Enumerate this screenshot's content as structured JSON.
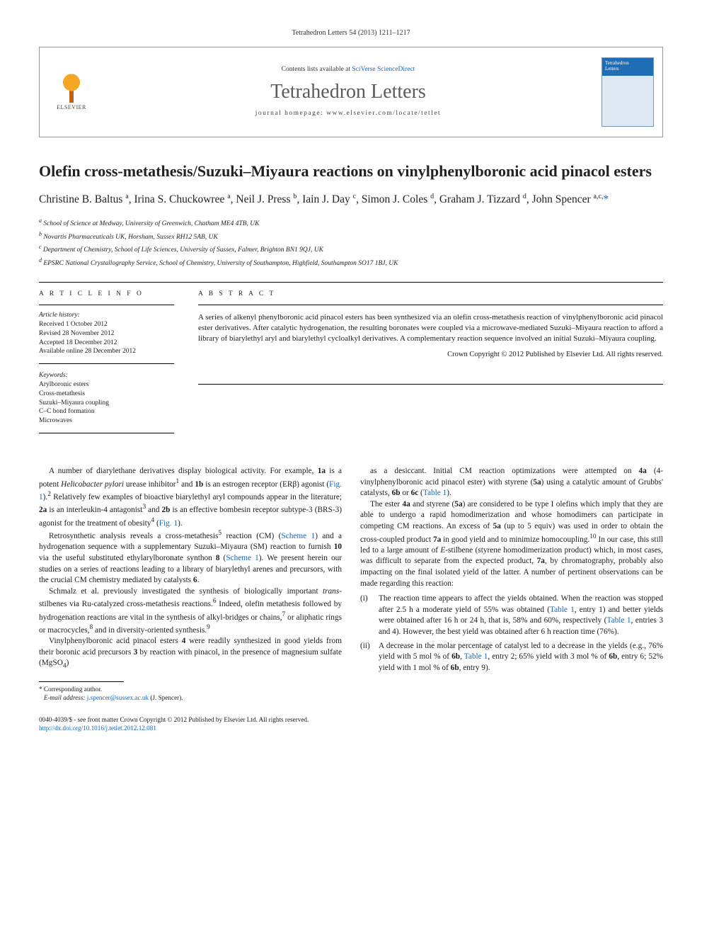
{
  "citation": "Tetrahedron Letters 54 (2013) 1211–1217",
  "header": {
    "publisher": "ELSEVIER",
    "contents_prefix": "Contents lists available at ",
    "contents_link": "SciVerse ScienceDirect",
    "journal_name": "Tetrahedron Letters",
    "homepage_prefix": "journal homepage: ",
    "homepage_url": "www.elsevier.com/locate/tetlet"
  },
  "title": "Olefin cross-metathesis/Suzuki–Miyaura reactions on vinylphenylboronic acid pinacol esters",
  "authors_html": "Christine B. Baltus <sup>a</sup>, Irina S. Chuckowree <sup>a</sup>, Neil J. Press <sup>b</sup>, Iain J. Day <sup>c</sup>, Simon J. Coles <sup>d</sup>, Graham J. Tizzard <sup>d</sup>, John Spencer <sup>a,c,</sup><span class=\"corr\">*</span>",
  "affiliations": [
    "a School of Science at Medway, University of Greenwich, Chatham ME4 4TB, UK",
    "b Novartis Pharmaceuticals UK, Horsham, Sussex RH12 5AB, UK",
    "c Department of Chemistry, School of Life Sciences, University of Sussex, Falmer, Brighton BN1 9QJ, UK",
    "d EPSRC National Crystallography Service, School of Chemistry, University of Southampton, Highfield, Southampton SO17 1BJ, UK"
  ],
  "article_info": {
    "heading": "A R T I C L E   I N F O",
    "history_label": "Article history:",
    "history": [
      "Received 1 October 2012",
      "Revised 28 November 2012",
      "Accepted 18 December 2012",
      "Available online 28 December 2012"
    ],
    "keywords_label": "Keywords:",
    "keywords": [
      "Arylboronic esters",
      "Cross-metathesis",
      "Suzuki–Miyaura coupling",
      "C–C bond formation",
      "Microwaves"
    ]
  },
  "abstract": {
    "heading": "A B S T R A C T",
    "text": "A series of alkenyl phenylboronic acid pinacol esters has been synthesized via an olefin cross-metathesis reaction of vinylphenylboronic acid pinacol ester derivatives. After catalytic hydrogenation, the resulting boronates were coupled via a microwave-mediated Suzuki–Miyaura reaction to afford a library of biarylethyl aryl and biarylethyl cycloalkyl derivatives. A complementary reaction sequence involved an initial Suzuki–Miyaura coupling.",
    "copyright": "Crown Copyright © 2012 Published by Elsevier Ltd. All rights reserved."
  },
  "body": {
    "p1": "A number of diarylethane derivatives display biological activity. For example, <b>1a</b> is a potent <i>Helicobacter pylori</i> urease inhibitor<sup>1</sup> and <b>1b</b> is an estrogen receptor (ERβ) agonist (<a>Fig. 1</a>).<sup>2</sup> Relatively few examples of bioactive biarylethyl aryl compounds appear in the literature; <b>2a</b> is an interleukin-4 antagonist<sup>3</sup> and <b>2b</b> is an effective bombesin receptor subtype-3 (BRS-3) agonist for the treatment of obesity<sup>4</sup> (<a>Fig. 1</a>).",
    "p2": "Retrosynthetic analysis reveals a cross-metathesis<sup>5</sup> reaction (CM) (<a>Scheme 1</a>) and a hydrogenation sequence with a supplementary Suzuki–Miyaura (SM) reaction to furnish <b>10</b> via the useful substituted ethylarylboronate synthon <b>8</b> (<a>Scheme 1</a>). We present herein our studies on a series of reactions leading to a library of biarylethyl arenes and precursors, with the crucial CM chemistry mediated by catalysts <b>6</b>.",
    "p3": "Schmalz et al. previously investigated the synthesis of biologically important <i>trans</i>-stilbenes via Ru-catalyzed cross-metathesis reactions.<sup>6</sup> Indeed, olefin metathesis followed by hydrogenation reactions are vital in the synthesis of alkyl-bridges or chains,<sup>7</sup> or aliphatic rings or macrocycles,<sup>8</sup> and in diversity-oriented synthesis.<sup>9</sup>",
    "p4": "Vinylphenylboronic acid pinacol esters <b>4</b> were readily synthesized in good yields from their boronic acid precursors <b>3</b> by reaction with pinacol, in the presence of magnesium sulfate (MgSO<sub>4</sub>)",
    "p5": "as a desiccant. Initial CM reaction optimizations were attempted on <b>4a</b> (4-vinylphenylboronic acid pinacol ester) with styrene (<b>5a</b>) using a catalytic amount of Grubbs' catalysts, <b>6b</b> or <b>6c</b> (<a>Table 1</a>).",
    "p6": "The ester <b>4a</b> and styrene (<b>5a</b>) are considered to be type I olefins which imply that they are able to undergo a rapid homodimerization and whose homodimers can participate in competing CM reactions. An excess of <b>5a</b> (up to 5 equiv) was used in order to obtain the cross-coupled product <b>7a</b> in good yield and to minimize homocoupling.<sup>10</sup> In our case, this still led to a large amount of <i>E</i>-stilbene (styrene homodimerization product) which, in most cases, was difficult to separate from the expected product, <b>7a</b>, by chromatography, probably also impacting on the final isolated yield of the latter. A number of pertinent observations can be made regarding this reaction:",
    "li1": "(i) The reaction time appears to affect the yields obtained. When the reaction was stopped after 2.5 h a moderate yield of 55% was obtained (<a>Table 1</a>, entry 1) and better yields were obtained after 16 h or 24 h, that is, 58% and 60%, respectively (<a>Table 1</a>, entries 3 and 4). However, the best yield was obtained after 6 h reaction time (76%).",
    "li2": "(ii) A decrease in the molar percentage of catalyst led to a decrease in the yields (e.g., 76% yield with 5 mol % of <b>6b</b>, <a>Table 1</a>, entry 2; 65% yield with 3 mol % of <b>6b</b>, entry 6; 52% yield with 1 mol % of <b>6b</b>, entry 9)."
  },
  "footnotes": {
    "corr_label": "* Corresponding author.",
    "email_label": "E-mail address:",
    "email": "j.spencer@sussex.ac.uk",
    "email_who": "(J. Spencer)."
  },
  "doi": {
    "line1": "0040-4039/$ - see front matter Crown Copyright © 2012 Published by Elsevier Ltd. All rights reserved.",
    "link": "http://dx.doi.org/10.1016/j.tetlet.2012.12.081"
  },
  "colors": {
    "link": "#1566c0",
    "text": "#1a1a1a",
    "rule": "#000000",
    "header_border": "#999999",
    "journal_grey": "#5b5b5b"
  },
  "typography": {
    "body_pt": 11.3,
    "title_pt": 22,
    "authors_pt": 15.5,
    "affil_pt": 9.5,
    "small_pt": 9.2,
    "journal_name_pt": 28
  }
}
